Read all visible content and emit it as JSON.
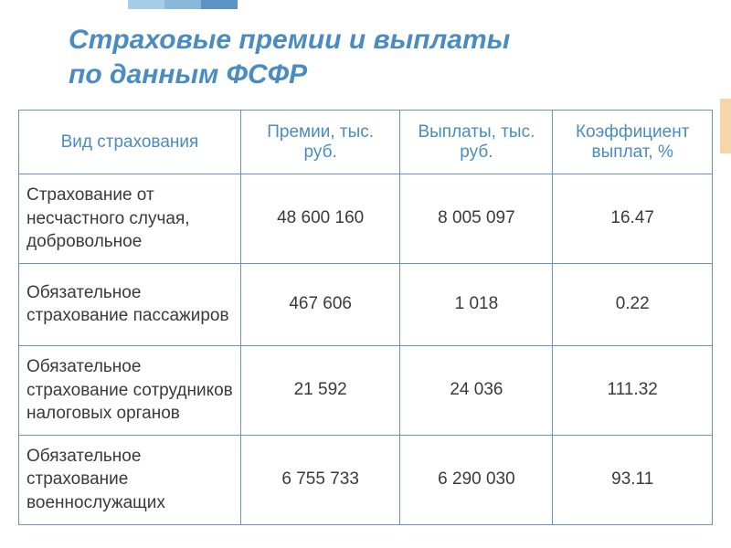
{
  "title": {
    "line1": "Страховые премии и выплаты",
    "line2": "по данным ФСФР"
  },
  "table": {
    "columns": [
      "Вид страхования",
      "Премии, тыс. руб.",
      "Выплаты, тыс. руб.",
      "Коэффициент выплат, %"
    ],
    "rows": [
      {
        "label": "Страхование от несчастного случая, добровольное",
        "premium": "48 600 160",
        "payout": "8 005 097",
        "ratio": "16.47"
      },
      {
        "label": "Обязательное страхование пассажиров",
        "premium": "467 606",
        "payout": "1 018",
        "ratio": "0.22"
      },
      {
        "label": "Обязательное страхование сотрудников налоговых органов",
        "premium": "21 592",
        "payout": "24 036",
        "ratio": "111.32"
      },
      {
        "label": "Обязательное страхование военнослужащих",
        "premium": "6 755 733",
        "payout": "6 290 030",
        "ratio": "93.11"
      }
    ]
  },
  "styling": {
    "title_color": "#4a8cc2",
    "title_fontsize": 30,
    "title_italic": true,
    "title_bold": true,
    "header_text_color": "#4a8cc2",
    "body_text_color": "#3a3a3a",
    "border_color": "#6b91b5",
    "cell_fontsize": 19,
    "background_color": "#ffffff",
    "accent_colors": [
      "#a9cde8",
      "#8ab8d9",
      "#5a93c4",
      "#f4d6a8"
    ],
    "column_widths_pct": [
      32,
      23,
      22,
      23
    ],
    "column_align": [
      "left",
      "center",
      "center",
      "center"
    ]
  }
}
